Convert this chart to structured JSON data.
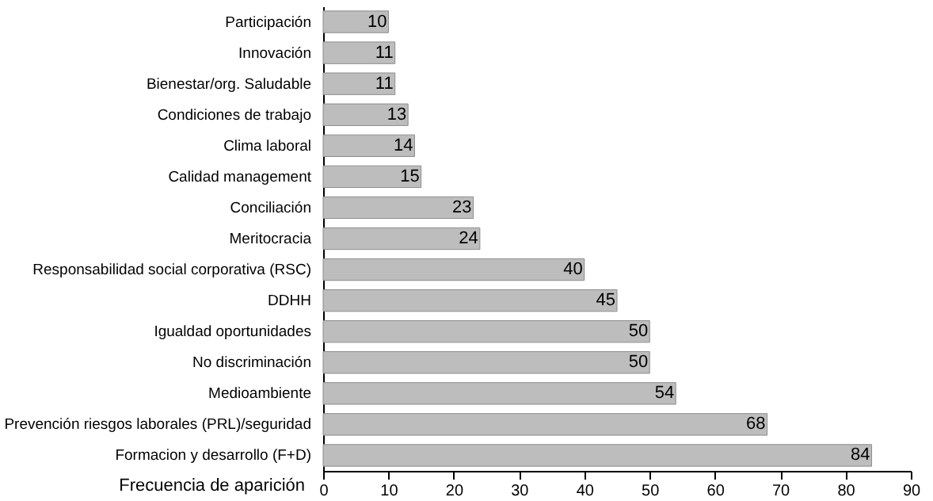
{
  "chart_data": {
    "type": "bar",
    "orientation": "horizontal",
    "categories": [
      "Participación",
      "Innovación",
      "Bienestar/org. Saludable",
      "Condiciones de trabajo",
      "Clima laboral",
      "Calidad management",
      "Conciliación",
      "Meritocracia",
      "Responsabilidad social corporativa (RSC)",
      "DDHH",
      "Igualdad oportunidades",
      "No discriminación",
      "Medioambiente",
      "Prevención riesgos laborales (PRL)/seguridad",
      "Formacion y desarrollo (F+D)"
    ],
    "values": [
      10,
      11,
      11,
      13,
      14,
      15,
      23,
      24,
      40,
      45,
      50,
      50,
      54,
      68,
      84
    ],
    "color": "#bdbdbd",
    "xlabel": "Frecuencia de aparición",
    "xlim": [
      0,
      90
    ],
    "xticks": [
      0,
      10,
      20,
      30,
      40,
      50,
      60,
      70,
      80,
      90
    ],
    "data_labels": true
  }
}
